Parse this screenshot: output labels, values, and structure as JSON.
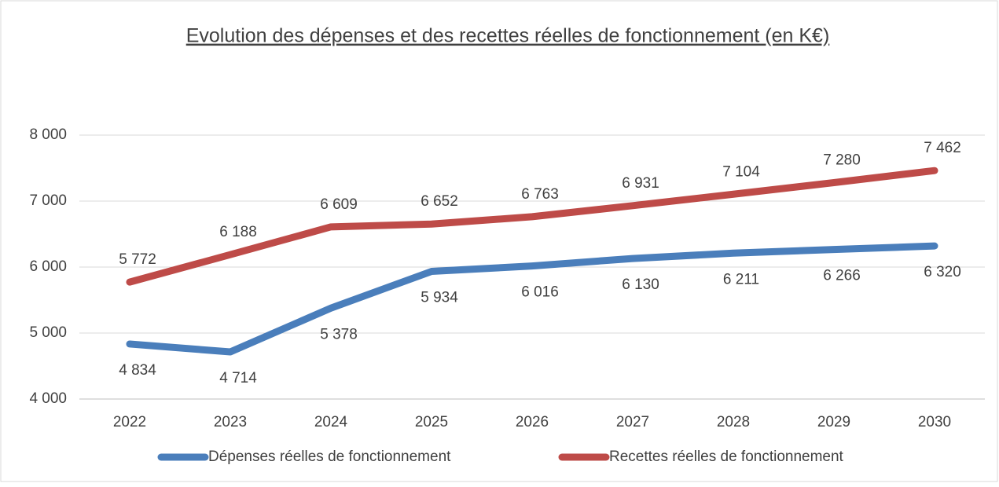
{
  "chart_data": {
    "type": "line",
    "title": "Evolution des dépenses et des recettes réelles de fonctionnement (en K€)",
    "categories": [
      "2022",
      "2023",
      "2024",
      "2025",
      "2026",
      "2027",
      "2028",
      "2029",
      "2030"
    ],
    "series": [
      {
        "name": "Dépenses réelles de fonctionnement",
        "color": "#4a7ebb",
        "values": [
          4834,
          4714,
          5378,
          5934,
          6016,
          6130,
          6211,
          6266,
          6320
        ],
        "value_labels": [
          "4 834",
          "4 714",
          "5 378",
          "5 934",
          "6 016",
          "6 130",
          "6 211",
          "6 266",
          "6 320"
        ]
      },
      {
        "name": "Recettes réelles de fonctionnement",
        "color": "#be4b48",
        "values": [
          5772,
          6188,
          6609,
          6652,
          6763,
          6931,
          7104,
          7280,
          7462
        ],
        "value_labels": [
          "5 772",
          "6 188",
          "6 609",
          "6 652",
          "6 763",
          "6 931",
          "7 104",
          "7 280",
          "7 462"
        ]
      }
    ],
    "ylim": [
      4000,
      8000
    ],
    "yticks": [
      {
        "value": 4000,
        "label": "4 000"
      },
      {
        "value": 5000,
        "label": "5 000"
      },
      {
        "value": 6000,
        "label": "6 000"
      },
      {
        "value": 7000,
        "label": "7 000"
      },
      {
        "value": 8000,
        "label": "8 000"
      }
    ],
    "grid": true,
    "legend": "bottom"
  }
}
